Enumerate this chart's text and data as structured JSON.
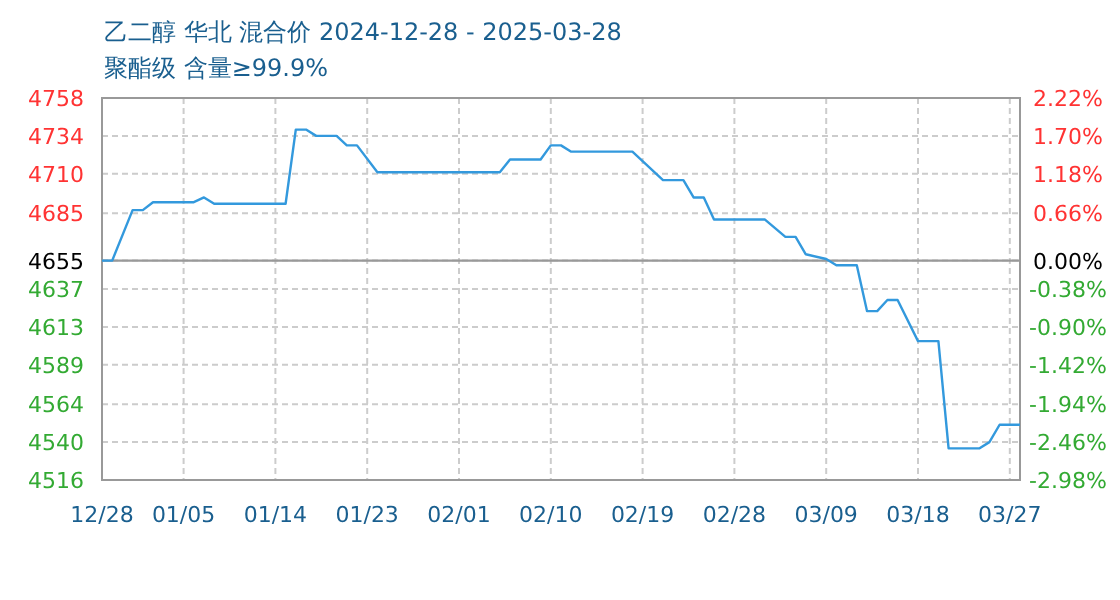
{
  "chart_data": {
    "type": "line",
    "title": "乙二醇 华北 混合价 2024-12-28 - 2025-03-28",
    "subtitle": "聚酯级 含量≥99.9%",
    "x": [
      "2024-12-28",
      "2024-12-29",
      "2024-12-31",
      "2025-01-01",
      "2025-01-02",
      "2025-01-06",
      "2025-01-07",
      "2025-01-08",
      "2025-01-15",
      "2025-01-16",
      "2025-01-17",
      "2025-01-18",
      "2025-01-20",
      "2025-01-21",
      "2025-01-22",
      "2025-01-24",
      "2025-02-05",
      "2025-02-06",
      "2025-02-09",
      "2025-02-10",
      "2025-02-11",
      "2025-02-12",
      "2025-02-18",
      "2025-02-21",
      "2025-02-23",
      "2025-02-24",
      "2025-02-25",
      "2025-02-26",
      "2025-03-03",
      "2025-03-05",
      "2025-03-06",
      "2025-03-07",
      "2025-03-09",
      "2025-03-10",
      "2025-03-12",
      "2025-03-13",
      "2025-03-14",
      "2025-03-15",
      "2025-03-16",
      "2025-03-18",
      "2025-03-20",
      "2025-03-21",
      "2025-03-24",
      "2025-03-25",
      "2025-03-26",
      "2025-03-28"
    ],
    "series": [
      {
        "color": "#3399dd",
        "values": [
          4655,
          4655,
          4687,
          4687,
          4692,
          4692,
          4695,
          4691,
          4691,
          4738,
          4738,
          4734,
          4734,
          4728,
          4728,
          4711,
          4711,
          4719,
          4719,
          4728,
          4728,
          4724,
          4724,
          4706,
          4706,
          4695,
          4695,
          4681,
          4681,
          4670,
          4670,
          4659,
          4656,
          4652,
          4652,
          4623,
          4623,
          4630,
          4630,
          4604,
          4604,
          4536,
          4536,
          4540,
          4551,
          4551
        ]
      }
    ],
    "xlim": [
      "2024-12-28",
      "2025-03-28"
    ],
    "xticks": [
      {
        "value": "2024-12-28",
        "label": "12/28"
      },
      {
        "value": "2025-01-05",
        "label": "01/05"
      },
      {
        "value": "2025-01-14",
        "label": "01/14"
      },
      {
        "value": "2025-01-23",
        "label": "01/23"
      },
      {
        "value": "2025-02-01",
        "label": "02/01"
      },
      {
        "value": "2025-02-10",
        "label": "02/10"
      },
      {
        "value": "2025-02-19",
        "label": "02/19"
      },
      {
        "value": "2025-02-28",
        "label": "02/28"
      },
      {
        "value": "2025-03-09",
        "label": "03/09"
      },
      {
        "value": "2025-03-18",
        "label": "03/18"
      },
      {
        "value": "2025-03-27",
        "label": "03/27"
      }
    ],
    "ylim": [
      4516,
      4758
    ],
    "yticks": [
      4516,
      4540,
      4564,
      4589,
      4613,
      4637,
      4655,
      4685,
      4710,
      4734,
      4758
    ],
    "y2lim": [
      -2.98,
      2.22
    ],
    "y2ticks": [
      {
        "value": -2.98,
        "label": "-2.98%"
      },
      {
        "value": -2.46,
        "label": "-2.46%"
      },
      {
        "value": -1.94,
        "label": "-1.94%"
      },
      {
        "value": -1.42,
        "label": "-1.42%"
      },
      {
        "value": -0.9,
        "label": "-0.90%"
      },
      {
        "value": -0.38,
        "label": "-0.38%"
      },
      {
        "value": 0,
        "label": "0.00%"
      },
      {
        "value": 0.66,
        "label": "0.66%"
      },
      {
        "value": 1.18,
        "label": "1.18%"
      },
      {
        "value": 1.7,
        "label": "1.70%"
      },
      {
        "value": 2.22,
        "label": "2.22%"
      }
    ],
    "ref_lines": [
      {
        "axis": "y",
        "value": 4655,
        "color": "#999999"
      }
    ],
    "grid": true,
    "line_style": "solid",
    "marker": "none"
  }
}
